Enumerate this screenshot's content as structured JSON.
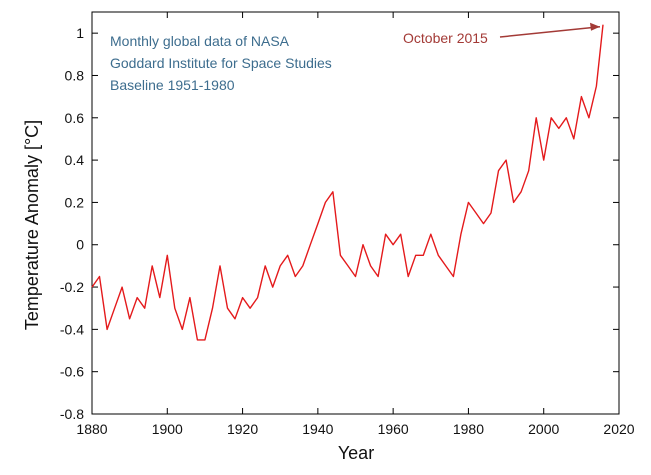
{
  "chart_data": {
    "type": "line",
    "xlabel": "Year",
    "ylabel": "Temperature Anomaly [°C]",
    "xlim": [
      1880,
      2020
    ],
    "ylim": [
      -0.8,
      1.1
    ],
    "x_ticks": [
      1880,
      1900,
      1920,
      1940,
      1960,
      1980,
      2000,
      2020
    ],
    "y_ticks": [
      -0.8,
      -0.6,
      -0.4,
      -0.2,
      0,
      0.2,
      0.4,
      0.6,
      0.8,
      1
    ],
    "x_tick_labels": [
      "1880",
      "1900",
      "1920",
      "1940",
      "1960",
      "1980",
      "2000",
      "2020"
    ],
    "y_tick_labels": [
      "-0.8",
      "-0.6",
      "-0.4",
      "-0.2",
      "0",
      "0.2",
      "0.4",
      "0.6",
      "0.8",
      "1"
    ],
    "grid": false,
    "legend": null,
    "series": [
      {
        "color": "#e41a1c",
        "x": [
          1880,
          1882,
          1884,
          1886,
          1888,
          1890,
          1892,
          1894,
          1896,
          1898,
          1900,
          1902,
          1904,
          1906,
          1908,
          1910,
          1912,
          1914,
          1916,
          1918,
          1920,
          1922,
          1924,
          1926,
          1928,
          1930,
          1932,
          1934,
          1936,
          1938,
          1940,
          1942,
          1944,
          1946,
          1948,
          1950,
          1952,
          1954,
          1956,
          1958,
          1960,
          1962,
          1964,
          1966,
          1968,
          1970,
          1972,
          1974,
          1976,
          1978,
          1980,
          1982,
          1984,
          1986,
          1988,
          1990,
          1992,
          1994,
          1996,
          1998,
          2000,
          2002,
          2004,
          2006,
          2008,
          2010,
          2012,
          2014,
          2015.75
        ],
        "y": [
          -0.2,
          -0.15,
          -0.4,
          -0.3,
          -0.2,
          -0.35,
          -0.25,
          -0.3,
          -0.1,
          -0.25,
          -0.05,
          -0.3,
          -0.4,
          -0.25,
          -0.45,
          -0.45,
          -0.3,
          -0.1,
          -0.3,
          -0.35,
          -0.25,
          -0.3,
          -0.25,
          -0.1,
          -0.2,
          -0.1,
          -0.05,
          -0.15,
          -0.1,
          0.0,
          0.1,
          0.2,
          0.25,
          -0.05,
          -0.1,
          -0.15,
          0.0,
          -0.1,
          -0.15,
          0.05,
          0.0,
          0.05,
          -0.15,
          -0.05,
          -0.05,
          0.05,
          -0.05,
          -0.1,
          -0.15,
          0.05,
          0.2,
          0.15,
          0.1,
          0.15,
          0.35,
          0.4,
          0.2,
          0.25,
          0.35,
          0.6,
          0.4,
          0.6,
          0.55,
          0.6,
          0.5,
          0.7,
          0.6,
          0.75,
          1.04
        ]
      }
    ],
    "annotations": [
      {
        "text": "Monthly global data of NASA",
        "color": "#3d6d8e"
      },
      {
        "text": "Goddard Institute for Space Studies",
        "color": "#3d6d8e"
      },
      {
        "text": "Baseline 1951-1980",
        "color": "#3d6d8e"
      },
      {
        "text": "October 2015",
        "color": "#a33a36",
        "x": 2015.75,
        "y": 1.04
      }
    ]
  }
}
